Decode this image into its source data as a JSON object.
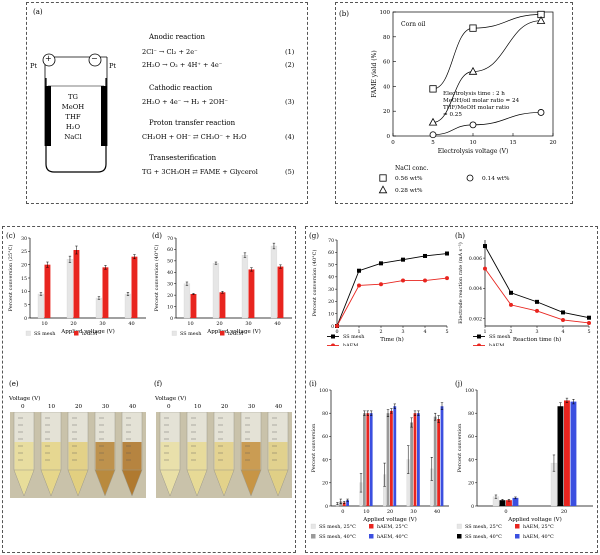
{
  "panel_a": {
    "label": "(a)",
    "anode_sign": "+",
    "cathode_sign": "−",
    "pt_left": "Pt",
    "pt_right": "Pt",
    "solution": [
      "TG",
      "MeOH",
      "THF",
      "H₂O",
      "NaCl"
    ],
    "sections": [
      {
        "title": "Anodic reaction",
        "eqs": [
          {
            "text": "2Cl⁻ → Cl₂ + 2e⁻",
            "num": "(1)"
          },
          {
            "text": "2H₂O → O₂ + 4H⁺ + 4e⁻",
            "num": "(2)"
          }
        ]
      },
      {
        "title": "Cathodic reaction",
        "eqs": [
          {
            "text": "2H₂O + 4e⁻ → H₂ + 2OH⁻",
            "num": "(3)"
          }
        ]
      },
      {
        "title": "Proton transfer reaction",
        "eqs": [
          {
            "text": "CH₃OH + OH⁻ ⇄ CH₃O⁻ + H₂O",
            "num": "(4)"
          }
        ]
      },
      {
        "title": "Transesterification",
        "eqs": [
          {
            "text": "TG + 3CH₃OH ⇄ FAME + Glycerol",
            "num": "(5)"
          }
        ]
      }
    ]
  },
  "photo_e": {
    "label": "(e)",
    "axis": "Voltage (V)",
    "values": [
      "0",
      "10",
      "20",
      "30",
      "40"
    ]
  },
  "photo_f": {
    "label": "(f)",
    "axis": "Voltage (V)",
    "values": [
      "0",
      "10",
      "20",
      "30",
      "40"
    ]
  },
  "colors": {
    "black": "#000000",
    "red": "#e8251f",
    "gray": "#9a9a9a",
    "lightgray": "#e6e6e6",
    "blue": "#3b4fe0"
  },
  "chart_data": [
    {
      "id": "b",
      "label": "(b)",
      "type": "scatter",
      "xlabel": "Electrolysis voltage (V)",
      "ylabel": "FAME yield (%)",
      "xlim": [
        0,
        20
      ],
      "ylim": [
        0,
        100
      ],
      "xticks": [
        "0",
        "5",
        "10",
        "15",
        "20"
      ],
      "yticks": [
        "0",
        "20",
        "40",
        "60",
        "80",
        "100"
      ],
      "annotation_oil": "Corn oil",
      "conditions": [
        "Electrolysis time : 2 h",
        "MeOH/oil molar ratio = 24",
        "THF/MeOH molar ratio",
        "= 0.25"
      ],
      "legend_title": "NaCl conc.",
      "series": [
        {
          "name": "0.56 wt%",
          "marker": "square",
          "x": [
            5,
            10,
            18.5
          ],
          "y": [
            38,
            87,
            98
          ]
        },
        {
          "name": "0.28 wt%",
          "marker": "triangle",
          "x": [
            5,
            10,
            18.5
          ],
          "y": [
            11,
            52,
            93
          ]
        },
        {
          "name": "0.14 wt%",
          "marker": "circle",
          "x": [
            5,
            10,
            18.5
          ],
          "y": [
            1,
            9,
            19
          ]
        }
      ]
    },
    {
      "id": "c",
      "label": "(c)",
      "type": "bar",
      "xlabel": "Applied voltage (V)",
      "ylabel": "Percent conversion (25°C)",
      "categories": [
        "10",
        "20",
        "30",
        "40"
      ],
      "ylim": [
        0,
        30
      ],
      "yticks": [
        "0",
        "5",
        "10",
        "15",
        "20",
        "25",
        "30"
      ],
      "series": [
        {
          "name": "SS mesh",
          "color": "#e6e6e6",
          "values": [
            9,
            22,
            7.5,
            9
          ],
          "err": [
            0.5,
            1.2,
            0.5,
            0.6
          ]
        },
        {
          "name": "hAEM",
          "color": "#e8251f",
          "values": [
            20,
            25.5,
            19,
            23
          ],
          "err": [
            1.0,
            1.5,
            0.7,
            0.8
          ]
        }
      ]
    },
    {
      "id": "d",
      "label": "(d)",
      "type": "bar",
      "xlabel": "Applied voltage (V)",
      "ylabel": "Percent conversion (40°C)",
      "categories": [
        "10",
        "20",
        "30",
        "40"
      ],
      "ylim": [
        0,
        70
      ],
      "yticks": [
        "0",
        "10",
        "20",
        "30",
        "40",
        "50",
        "60",
        "70"
      ],
      "series": [
        {
          "name": "SS mesh",
          "color": "#e6e6e6",
          "values": [
            30,
            48,
            55,
            63
          ],
          "err": [
            1.5,
            1.0,
            2.0,
            2.5
          ]
        },
        {
          "name": "hAEM",
          "color": "#e8251f",
          "values": [
            21,
            22.5,
            42.5,
            45
          ],
          "err": [
            0.5,
            0.8,
            1.5,
            1.5
          ]
        }
      ]
    },
    {
      "id": "g",
      "label": "(g)",
      "type": "line",
      "xlabel": "Time (h)",
      "ylabel": "Percent conversion (40°C)",
      "xlim": [
        0,
        5
      ],
      "ylim": [
        0,
        70
      ],
      "xticks": [
        "0",
        "1",
        "2",
        "3",
        "4",
        "5"
      ],
      "yticks": [
        "0",
        "10",
        "20",
        "30",
        "40",
        "50",
        "60",
        "70"
      ],
      "series": [
        {
          "name": "SS mesh",
          "color": "#000000",
          "x": [
            0,
            1,
            2,
            3,
            4,
            5
          ],
          "y": [
            0,
            45,
            51,
            54,
            57,
            59
          ]
        },
        {
          "name": "hAEM",
          "color": "#e8251f",
          "x": [
            0,
            1,
            2,
            3,
            4,
            5
          ],
          "y": [
            0,
            33,
            34,
            37,
            37,
            39
          ]
        }
      ]
    },
    {
      "id": "h",
      "label": "(h)",
      "type": "line",
      "xlabel": "Reaction time (h)",
      "ylabel": "Electrode reaction rate (mA s⁻¹)",
      "xlim": [
        1,
        5
      ],
      "ylim": [
        0.0015,
        0.0072
      ],
      "xticks": [
        "1",
        "2",
        "3",
        "4",
        "5"
      ],
      "yticks": [
        "0.002",
        "0.004",
        "0.006"
      ],
      "ytick_values": [
        0.002,
        0.004,
        0.006
      ],
      "series": [
        {
          "name": "SS mesh",
          "color": "#000000",
          "x": [
            1,
            2,
            3,
            4,
            5
          ],
          "y": [
            0.0068,
            0.0037,
            0.0031,
            0.0024,
            0.00205
          ]
        },
        {
          "name": "hAEM",
          "color": "#e8251f",
          "x": [
            1,
            2,
            3,
            4,
            5
          ],
          "y": [
            0.0053,
            0.0029,
            0.0025,
            0.0019,
            0.0017
          ]
        }
      ]
    },
    {
      "id": "i",
      "label": "(i)",
      "type": "bar",
      "xlabel": "Applied voltage (V)",
      "ylabel": "Percent conversion",
      "categories": [
        "0",
        "10",
        "20",
        "30",
        "40"
      ],
      "ylim": [
        0,
        100
      ],
      "yticks": [
        "0",
        "20",
        "40",
        "60",
        "80",
        "100"
      ],
      "series": [
        {
          "name": "SS mesh, 25°C",
          "color": "#e6e6e6",
          "values": [
            2,
            20,
            27,
            40,
            32
          ],
          "err": [
            1,
            8,
            10,
            12,
            10
          ]
        },
        {
          "name": "SS mesh, 40°C",
          "color": "#9a9a9a",
          "values": [
            4,
            80,
            80,
            72,
            77
          ],
          "err": [
            2,
            2,
            3,
            4,
            3
          ]
        },
        {
          "name": "hAEM, 25°C",
          "color": "#e8251f",
          "values": [
            3,
            80,
            82,
            80,
            75
          ],
          "err": [
            1,
            2,
            2,
            2,
            3
          ]
        },
        {
          "name": "hAEM, 40°C",
          "color": "#3b4fe0",
          "values": [
            5,
            80,
            86,
            80,
            86
          ],
          "err": [
            1,
            2,
            2,
            2,
            3
          ]
        }
      ]
    },
    {
      "id": "j",
      "label": "(j)",
      "type": "bar",
      "xlabel": "Applied voltage (V)",
      "ylabel": "Percent conversion",
      "categories": [
        "0",
        "20"
      ],
      "ylim": [
        0,
        100
      ],
      "yticks": [
        "0",
        "20",
        "40",
        "60",
        "80",
        "100"
      ],
      "series": [
        {
          "name": "SS mesh, 25°C",
          "color": "#e6e6e6",
          "values": [
            8,
            37
          ],
          "err": [
            1.5,
            7
          ]
        },
        {
          "name": "SS mesh, 40°C",
          "color": "#000000",
          "values": [
            5,
            86
          ],
          "err": [
            0.8,
            3
          ]
        },
        {
          "name": "hAEM, 25°C",
          "color": "#e8251f",
          "values": [
            5,
            91
          ],
          "err": [
            0.8,
            2
          ]
        },
        {
          "name": "hAEM, 40°C",
          "color": "#3b4fe0",
          "values": [
            7,
            90
          ],
          "err": [
            0.8,
            2
          ]
        }
      ]
    }
  ]
}
